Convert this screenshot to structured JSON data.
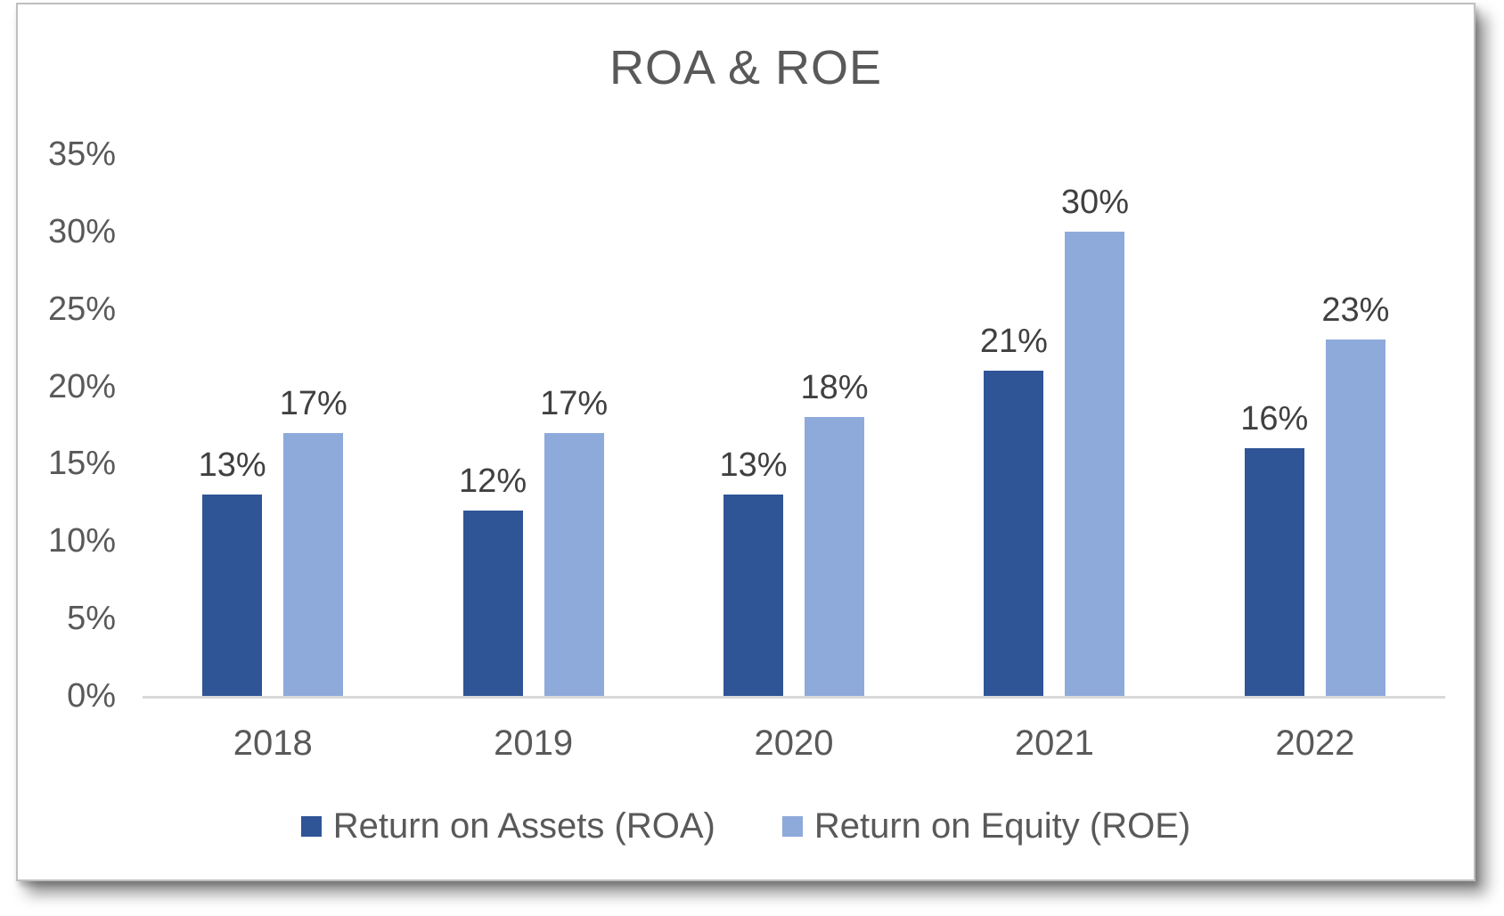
{
  "chart_data": {
    "type": "bar",
    "title": "ROA & ROE",
    "categories": [
      "2018",
      "2019",
      "2020",
      "2021",
      "2022"
    ],
    "series": [
      {
        "name": "Return on Assets (ROA)",
        "color": "#2F5597",
        "values": [
          13,
          12,
          13,
          21,
          16
        ],
        "labels": [
          "13%",
          "12%",
          "13%",
          "21%",
          "16%"
        ]
      },
      {
        "name": "Return on Equity (ROE)",
        "color": "#8EAADB",
        "values": [
          17,
          17,
          18,
          30,
          23
        ],
        "labels": [
          "17%",
          "17%",
          "18%",
          "30%",
          "23%"
        ]
      }
    ],
    "yaxis": {
      "min": 0,
      "max": 35,
      "step": 5,
      "tick_values": [
        0,
        5,
        10,
        15,
        20,
        25,
        30,
        35
      ],
      "tick_labels": [
        "0%",
        "5%",
        "10%",
        "15%",
        "20%",
        "25%",
        "30%",
        "35%"
      ]
    },
    "data_labels_shown": true,
    "grid": false,
    "legend_position": "bottom",
    "styles": {
      "title_color": "#595959",
      "axis_label_color": "#595959",
      "data_label_color": "#404040",
      "axis_line_color": "#D9D9D9",
      "panel_border_color": "#BFBFBF"
    }
  }
}
